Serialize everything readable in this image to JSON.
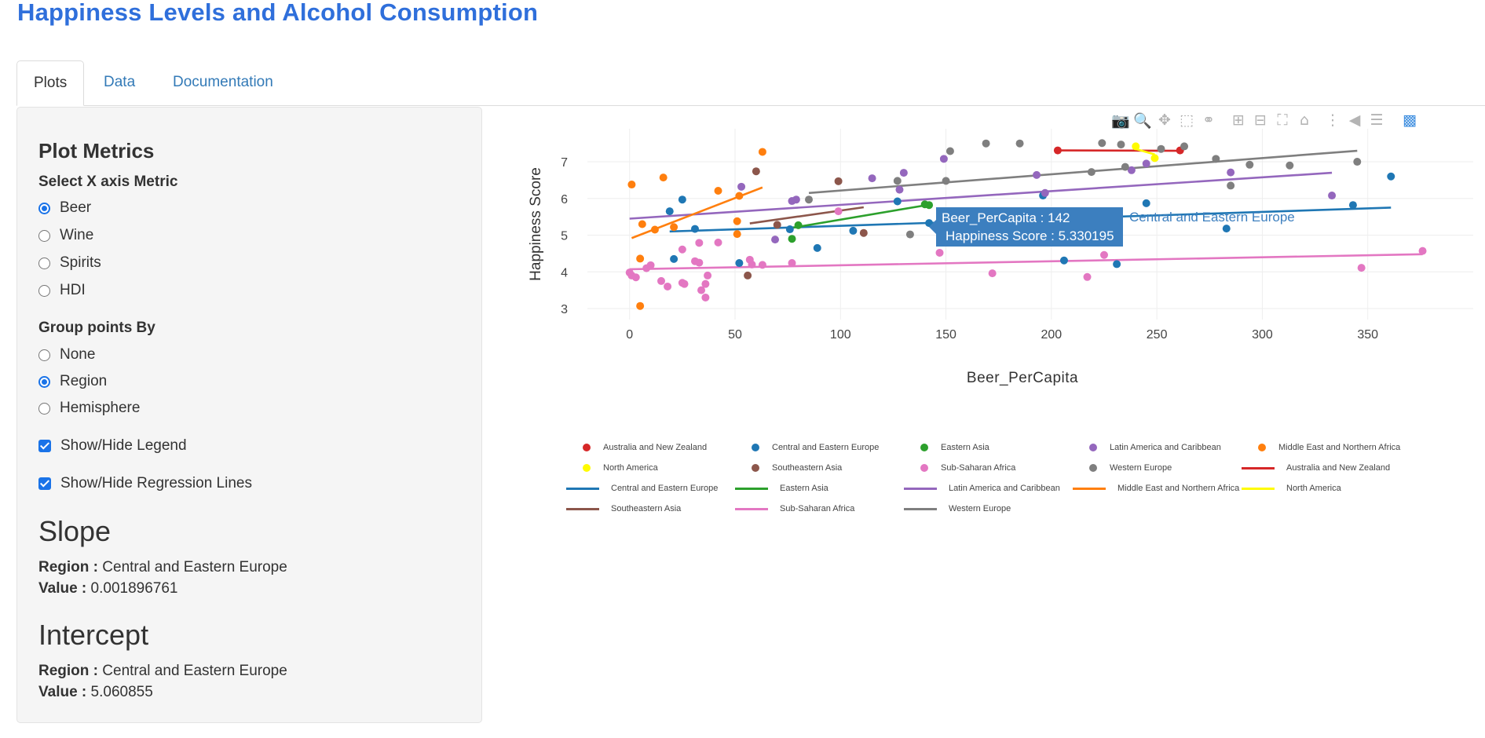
{
  "title": "Happiness Levels and Alcohol Consumption",
  "tabs": [
    "Plots",
    "Data",
    "Documentation"
  ],
  "sidebar": {
    "heading": "Plot Metrics",
    "x_label": "Select X axis Metric",
    "x_options": [
      "Beer",
      "Wine",
      "Spirits",
      "HDI"
    ],
    "x_selected": "Beer",
    "group_label": "Group points By",
    "group_options": [
      "None",
      "Region",
      "Hemisphere"
    ],
    "group_selected": "Region",
    "legend_check": "Show/Hide Legend",
    "regression_check": "Show/Hide Regression Lines",
    "slope_heading": "Slope",
    "intercept_heading": "Intercept",
    "region_key": "Region :",
    "value_key": "Value :",
    "slope_region": "Central and Eastern Europe",
    "slope_value": "0.001896761",
    "intercept_region": "Central and Eastern Europe",
    "intercept_value": "5.060855"
  },
  "modebar_icons": [
    "camera-icon",
    "zoom-icon",
    "pan-icon",
    "box-select-icon",
    "lasso-icon",
    "zoom-in-icon",
    "zoom-out-icon",
    "autoscale-icon",
    "reset-axes-icon",
    "spike-lines-icon",
    "hover-closest-icon",
    "hover-compare-icon",
    "plotly-logo-icon"
  ],
  "tooltip": {
    "line1": "Beer_PerCapita  : 142",
    "line2": "Happiness Score : 5.330195",
    "name": "Central and Eastern Europe"
  },
  "chart_data": {
    "type": "scatter",
    "xlabel": "Beer_PerCapita",
    "ylabel": "Happiness Score",
    "xlim": [
      -20,
      400
    ],
    "ylim": [
      2.7,
      7.9
    ],
    "xticks": [
      0,
      50,
      100,
      150,
      200,
      250,
      300,
      350
    ],
    "yticks": [
      3,
      4,
      5,
      6,
      7
    ],
    "grid": true,
    "legend_placement": "bottom",
    "series": [
      {
        "name": "Australia and New Zealand",
        "color": "#d62728",
        "points": [
          [
            203,
            7.31
          ],
          [
            261,
            7.31
          ]
        ],
        "line": [
          [
            203,
            7.31
          ],
          [
            261,
            7.3
          ]
        ]
      },
      {
        "name": "Central and Eastern Europe",
        "color": "#1f77b4",
        "points": [
          [
            19,
            5.65
          ],
          [
            25,
            5.97
          ],
          [
            21,
            4.35
          ],
          [
            31,
            5.17
          ],
          [
            52,
            4.24
          ],
          [
            76,
            5.16
          ],
          [
            89,
            4.65
          ],
          [
            106,
            5.12
          ],
          [
            127,
            5.92
          ],
          [
            142,
            5.33
          ],
          [
            196,
            6.08
          ],
          [
            206,
            4.31
          ],
          [
            231,
            4.21
          ],
          [
            245,
            5.87
          ],
          [
            283,
            5.18
          ],
          [
            343,
            5.82
          ],
          [
            361,
            6.6
          ]
        ],
        "line": [
          [
            19,
            5.1
          ],
          [
            361,
            5.75
          ]
        ]
      },
      {
        "name": "Eastern Asia",
        "color": "#2ca02c",
        "points": [
          [
            77,
            4.9
          ],
          [
            80,
            5.27
          ],
          [
            140,
            5.84
          ],
          [
            142,
            5.82
          ]
        ],
        "line": [
          [
            77,
            5.2
          ],
          [
            142,
            5.83
          ]
        ]
      },
      {
        "name": "Latin America and Caribbean",
        "color": "#9467bd",
        "points": [
          [
            53,
            6.32
          ],
          [
            69,
            4.88
          ],
          [
            77,
            5.93
          ],
          [
            79,
            5.97
          ],
          [
            115,
            6.55
          ],
          [
            128,
            6.24
          ],
          [
            130,
            6.7
          ],
          [
            149,
            7.08
          ],
          [
            193,
            6.64
          ],
          [
            197,
            6.15
          ],
          [
            238,
            6.77
          ],
          [
            245,
            6.95
          ],
          [
            285,
            6.71
          ],
          [
            333,
            6.08
          ]
        ],
        "line": [
          [
            0,
            5.45
          ],
          [
            333,
            6.7
          ]
        ]
      },
      {
        "name": "Middle East and Northern Africa",
        "color": "#ff7f0e",
        "points": [
          [
            1,
            6.38
          ],
          [
            5,
            4.36
          ],
          [
            6,
            5.3
          ],
          [
            12,
            5.15
          ],
          [
            16,
            6.57
          ],
          [
            21,
            5.22
          ],
          [
            42,
            6.21
          ],
          [
            51,
            5.03
          ],
          [
            52,
            6.07
          ],
          [
            63,
            7.27
          ],
          [
            5,
            3.07
          ],
          [
            51,
            5.38
          ]
        ],
        "line": [
          [
            1,
            4.92
          ],
          [
            63,
            6.3
          ]
        ]
      },
      {
        "name": "North America",
        "color": "#fffb00",
        "points": [
          [
            240,
            7.42
          ],
          [
            249,
            7.1
          ]
        ],
        "line": [
          [
            240,
            7.35
          ],
          [
            249,
            7.2
          ]
        ]
      },
      {
        "name": "Southeastern Asia",
        "color": "#8c564b",
        "points": [
          [
            56,
            3.9
          ],
          [
            60,
            6.74
          ],
          [
            70,
            5.28
          ],
          [
            99,
            6.47
          ],
          [
            111,
            5.06
          ]
        ],
        "line": [
          [
            57,
            5.32
          ],
          [
            111,
            5.76
          ]
        ]
      },
      {
        "name": "Sub-Saharan Africa",
        "color": "#e377c2",
        "points": [
          [
            0,
            3.98
          ],
          [
            1,
            3.9
          ],
          [
            3,
            3.85
          ],
          [
            8,
            4.1
          ],
          [
            10,
            4.18
          ],
          [
            15,
            3.75
          ],
          [
            18,
            3.6
          ],
          [
            25,
            4.61
          ],
          [
            25,
            3.7
          ],
          [
            26,
            3.67
          ],
          [
            31,
            4.29
          ],
          [
            33,
            4.79
          ],
          [
            33,
            4.25
          ],
          [
            34,
            3.5
          ],
          [
            36,
            3.3
          ],
          [
            36,
            3.67
          ],
          [
            37,
            3.9
          ],
          [
            42,
            4.8
          ],
          [
            57,
            4.33
          ],
          [
            58,
            4.2
          ],
          [
            63,
            4.19
          ],
          [
            77,
            4.24
          ],
          [
            99,
            5.65
          ],
          [
            147,
            4.52
          ],
          [
            172,
            3.96
          ],
          [
            217,
            3.86
          ],
          [
            225,
            4.46
          ],
          [
            347,
            4.11
          ],
          [
            376,
            4.57
          ]
        ],
        "line": [
          [
            0,
            4.07
          ],
          [
            376,
            4.48
          ]
        ]
      },
      {
        "name": "Western Europe",
        "color": "#7f7f7f",
        "points": [
          [
            85,
            5.97
          ],
          [
            127,
            6.48
          ],
          [
            133,
            5.02
          ],
          [
            150,
            6.48
          ],
          [
            152,
            7.29
          ],
          [
            169,
            7.5
          ],
          [
            185,
            7.5
          ],
          [
            219,
            6.72
          ],
          [
            224,
            7.51
          ],
          [
            233,
            7.47
          ],
          [
            235,
            6.86
          ],
          [
            252,
            7.35
          ],
          [
            263,
            7.42
          ],
          [
            278,
            7.08
          ],
          [
            285,
            6.35
          ],
          [
            294,
            6.92
          ],
          [
            313,
            6.9
          ],
          [
            345,
            7.0
          ]
        ],
        "line": [
          [
            85,
            6.15
          ],
          [
            345,
            7.3
          ]
        ]
      }
    ]
  }
}
